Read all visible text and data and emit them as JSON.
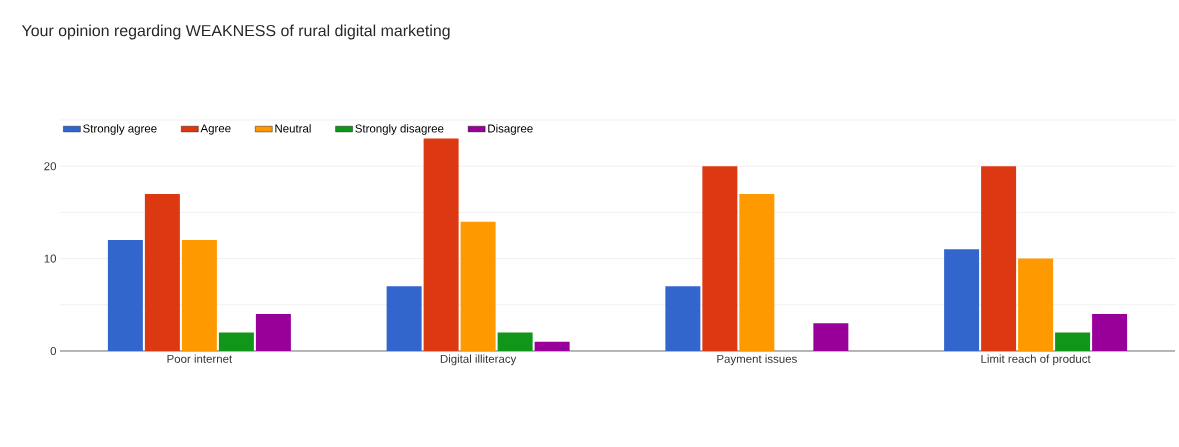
{
  "chart_data": {
    "type": "bar",
    "title": "Your opinion regarding WEAKNESS of rural digital marketing",
    "categories": [
      "Poor internet",
      "Digital illiteracy",
      "Payment issues",
      "Limit reach of product"
    ],
    "series": [
      {
        "name": "Strongly agree",
        "color": "#3366cc",
        "values": [
          12,
          7,
          7,
          11
        ]
      },
      {
        "name": "Agree",
        "color": "#dc3912",
        "values": [
          17,
          23,
          20,
          20
        ]
      },
      {
        "name": "Neutral",
        "color": "#ff9900",
        "values": [
          12,
          14,
          17,
          10
        ]
      },
      {
        "name": "Strongly disagree",
        "color": "#109618",
        "values": [
          2,
          2,
          0,
          2
        ]
      },
      {
        "name": "Disagree",
        "color": "#990099",
        "values": [
          4,
          1,
          3,
          4
        ]
      }
    ],
    "ylim": [
      0,
      25
    ],
    "yticks": [
      0,
      {
        "value": 5,
        "label": null
      },
      10,
      {
        "value": 15,
        "label": null
      },
      20,
      {
        "value": 25,
        "label": null
      }
    ],
    "grid": "y",
    "legend": "top"
  }
}
